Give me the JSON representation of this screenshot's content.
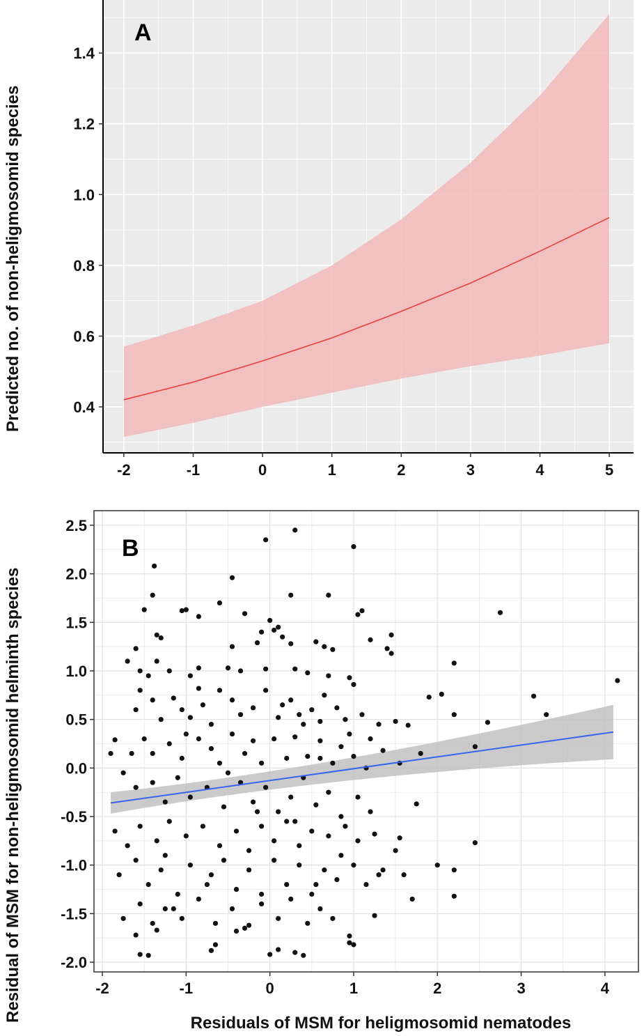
{
  "chart_data": [
    {
      "type": "line",
      "panel_label": "A",
      "ylabel": "Predicted no. of non-heligmosomid species",
      "xlabel": "",
      "xlim": [
        -2.3,
        5.35
      ],
      "ylim": [
        0.27,
        1.55
      ],
      "x_ticks": [
        -2,
        -1,
        0,
        1,
        2,
        3,
        4,
        5
      ],
      "y_ticks": [
        0.4,
        0.6,
        0.8,
        1.0,
        1.2,
        1.4
      ],
      "y_tick_labels": [
        "0.4",
        "0.6",
        "0.8",
        "1.0",
        "1.2",
        "1.4"
      ],
      "grid": true,
      "line_color": "#e8413c",
      "band_color": "#f2b8b8",
      "x": [
        -2,
        -1,
        0,
        1,
        2,
        3,
        4,
        5
      ],
      "fit": [
        0.42,
        0.47,
        0.53,
        0.595,
        0.67,
        0.75,
        0.84,
        0.935
      ],
      "lower": [
        0.315,
        0.355,
        0.4,
        0.44,
        0.48,
        0.515,
        0.545,
        0.58
      ],
      "upper": [
        0.57,
        0.63,
        0.7,
        0.8,
        0.93,
        1.09,
        1.28,
        1.51
      ]
    },
    {
      "type": "scatter",
      "panel_label": "B",
      "xlabel": "Residuals of MSM for heligmosomid nematodes",
      "ylabel": "Residual of MSM for non-heligmosomid helminth species",
      "xlim": [
        -2.1,
        4.4
      ],
      "ylim": [
        -2.1,
        2.65
      ],
      "x_ticks": [
        -2,
        -1,
        0,
        1,
        2,
        3,
        4
      ],
      "y_ticks": [
        -2.0,
        -1.5,
        -1.0,
        -0.5,
        0.0,
        0.5,
        1.0,
        1.5,
        2.0,
        2.5
      ],
      "y_tick_labels": [
        "-2.0",
        "-1.5",
        "-1.0",
        "-0.5",
        "0.0",
        "0.5",
        "1.0",
        "1.5",
        "2.0",
        "2.5"
      ],
      "grid": true,
      "point_color": "#111111",
      "line_color": "#3366ee",
      "band_color": "#bdbdbd",
      "fit_x": [
        -1.9,
        4.1
      ],
      "fit_y": [
        -0.36,
        0.37
      ],
      "band_lower": [
        -0.47,
        0.09
      ],
      "band_upper": [
        -0.25,
        0.65
      ],
      "points": [
        [
          -0.05,
          2.35
        ],
        [
          0.3,
          2.45
        ],
        [
          1.0,
          2.28
        ],
        [
          -1.38,
          2.08
        ],
        [
          -0.45,
          1.96
        ],
        [
          -1.4,
          1.78
        ],
        [
          -1.5,
          1.63
        ],
        [
          -1.0,
          1.63
        ],
        [
          0.7,
          1.78
        ],
        [
          0.25,
          1.78
        ],
        [
          -1.05,
          1.62
        ],
        [
          -0.6,
          1.7
        ],
        [
          -0.85,
          1.56
        ],
        [
          -0.3,
          1.59
        ],
        [
          1.05,
          1.58
        ],
        [
          1.1,
          1.62
        ],
        [
          2.75,
          1.6
        ],
        [
          4.15,
          0.9
        ],
        [
          1.45,
          1.37
        ],
        [
          0.0,
          1.52
        ],
        [
          -1.35,
          1.37
        ],
        [
          -1.3,
          1.34
        ],
        [
          0.1,
          1.45
        ],
        [
          0.05,
          1.42
        ],
        [
          -0.1,
          1.4
        ],
        [
          0.15,
          1.35
        ],
        [
          0.25,
          1.28
        ],
        [
          -0.15,
          1.29
        ],
        [
          -0.45,
          1.25
        ],
        [
          0.55,
          1.3
        ],
        [
          0.65,
          1.25
        ],
        [
          0.75,
          1.22
        ],
        [
          1.2,
          1.32
        ],
        [
          1.4,
          1.23
        ],
        [
          1.45,
          1.18
        ],
        [
          -1.6,
          1.23
        ],
        [
          -1.7,
          1.1
        ],
        [
          -1.55,
          1.0
        ],
        [
          -1.35,
          1.1
        ],
        [
          -1.45,
          0.95
        ],
        [
          -1.2,
          1.0
        ],
        [
          -0.95,
          0.95
        ],
        [
          -0.85,
          1.03
        ],
        [
          -0.85,
          0.82
        ],
        [
          -0.5,
          1.03
        ],
        [
          -0.35,
          1.0
        ],
        [
          -0.05,
          1.02
        ],
        [
          0.3,
          1.02
        ],
        [
          0.45,
          0.98
        ],
        [
          0.7,
          0.95
        ],
        [
          0.95,
          0.93
        ],
        [
          1.0,
          0.86
        ],
        [
          2.2,
          1.08
        ],
        [
          3.15,
          0.74
        ],
        [
          2.05,
          0.76
        ],
        [
          1.9,
          0.73
        ],
        [
          -1.85,
          0.29
        ],
        [
          -1.6,
          0.6
        ],
        [
          -1.55,
          0.8
        ],
        [
          -1.4,
          0.7
        ],
        [
          -1.3,
          0.5
        ],
        [
          -1.15,
          0.72
        ],
        [
          -1.05,
          0.6
        ],
        [
          -0.95,
          0.52
        ],
        [
          -0.8,
          0.65
        ],
        [
          -0.6,
          0.8
        ],
        [
          -0.45,
          0.7
        ],
        [
          -0.35,
          0.55
        ],
        [
          -0.2,
          0.62
        ],
        [
          -0.05,
          0.8
        ],
        [
          0.1,
          0.52
        ],
        [
          0.25,
          0.7
        ],
        [
          0.35,
          0.55
        ],
        [
          0.5,
          0.6
        ],
        [
          0.6,
          0.48
        ],
        [
          0.8,
          0.62
        ],
        [
          0.9,
          0.5
        ],
        [
          1.1,
          0.55
        ],
        [
          1.3,
          0.45
        ],
        [
          1.5,
          0.48
        ],
        [
          1.65,
          0.44
        ],
        [
          2.2,
          0.55
        ],
        [
          2.6,
          0.47
        ],
        [
          3.3,
          0.55
        ],
        [
          -1.65,
          0.15
        ],
        [
          -1.5,
          0.3
        ],
        [
          -1.4,
          0.15
        ],
        [
          -1.2,
          0.25
        ],
        [
          -1.05,
          0.1
        ],
        [
          -0.85,
          0.3
        ],
        [
          -0.7,
          0.2
        ],
        [
          -0.6,
          0.05
        ],
        [
          -0.45,
          0.35
        ],
        [
          -0.3,
          0.15
        ],
        [
          -0.2,
          0.28
        ],
        [
          -0.1,
          0.05
        ],
        [
          0.05,
          0.3
        ],
        [
          0.2,
          0.1
        ],
        [
          0.3,
          0.32
        ],
        [
          0.45,
          0.12
        ],
        [
          0.6,
          0.28
        ],
        [
          0.75,
          0.05
        ],
        [
          0.85,
          0.22
        ],
        [
          1.0,
          0.12
        ],
        [
          1.15,
          0.0
        ],
        [
          1.35,
          0.18
        ],
        [
          1.55,
          0.05
        ],
        [
          1.8,
          0.15
        ],
        [
          2.45,
          0.22
        ],
        [
          -1.9,
          0.15
        ],
        [
          -1.75,
          -0.05
        ],
        [
          -1.6,
          -0.2
        ],
        [
          -1.4,
          -0.15
        ],
        [
          -1.25,
          -0.35
        ],
        [
          -1.1,
          -0.1
        ],
        [
          -0.95,
          -0.3
        ],
        [
          -0.75,
          -0.2
        ],
        [
          -0.55,
          -0.4
        ],
        [
          -0.35,
          -0.15
        ],
        [
          -0.2,
          -0.35
        ],
        [
          -0.05,
          -0.2
        ],
        [
          0.1,
          -0.45
        ],
        [
          0.25,
          -0.3
        ],
        [
          0.4,
          -0.1
        ],
        [
          0.55,
          -0.38
        ],
        [
          0.7,
          -0.25
        ],
        [
          0.85,
          -0.5
        ],
        [
          1.05,
          -0.3
        ],
        [
          1.2,
          -0.45
        ],
        [
          1.75,
          -0.37
        ],
        [
          -1.85,
          -0.65
        ],
        [
          -1.7,
          -0.8
        ],
        [
          -1.55,
          -0.6
        ],
        [
          -1.35,
          -0.75
        ],
        [
          -1.2,
          -0.55
        ],
        [
          -1.0,
          -0.7
        ],
        [
          -0.8,
          -0.6
        ],
        [
          -0.6,
          -0.8
        ],
        [
          -0.4,
          -0.65
        ],
        [
          -0.25,
          -0.85
        ],
        [
          -0.1,
          -0.6
        ],
        [
          0.05,
          -0.75
        ],
        [
          0.2,
          -0.55
        ],
        [
          0.35,
          -0.8
        ],
        [
          0.5,
          -0.65
        ],
        [
          0.7,
          -0.7
        ],
        [
          0.9,
          -0.6
        ],
        [
          1.05,
          -0.75
        ],
        [
          1.25,
          -0.68
        ],
        [
          1.55,
          -0.72
        ],
        [
          2.45,
          -0.77
        ],
        [
          -1.8,
          -1.1
        ],
        [
          -1.6,
          -0.95
        ],
        [
          -1.45,
          -1.2
        ],
        [
          -1.3,
          -1.05
        ],
        [
          -1.1,
          -1.3
        ],
        [
          -0.95,
          -1.0
        ],
        [
          -0.75,
          -1.2
        ],
        [
          -0.55,
          -0.95
        ],
        [
          -0.4,
          -1.25
        ],
        [
          -0.25,
          -1.05
        ],
        [
          -0.1,
          -1.3
        ],
        [
          0.05,
          -0.95
        ],
        [
          0.2,
          -1.2
        ],
        [
          0.35,
          -1.0
        ],
        [
          0.5,
          -1.3
        ],
        [
          0.65,
          -1.05
        ],
        [
          0.8,
          -1.15
        ],
        [
          1.0,
          -1.0
        ],
        [
          1.15,
          -1.2
        ],
        [
          1.35,
          -1.05
        ],
        [
          1.6,
          -1.1
        ],
        [
          2.0,
          -1.0
        ],
        [
          2.2,
          -1.05
        ],
        [
          2.2,
          -1.32
        ],
        [
          -1.75,
          -1.55
        ],
        [
          -1.55,
          -1.4
        ],
        [
          -1.4,
          -1.6
        ],
        [
          -1.25,
          -1.45
        ],
        [
          -1.05,
          -1.55
        ],
        [
          -0.85,
          -1.35
        ],
        [
          -0.65,
          -1.6
        ],
        [
          -0.45,
          -1.45
        ],
        [
          -0.3,
          -1.65
        ],
        [
          -0.1,
          -1.4
        ],
        [
          0.1,
          -1.55
        ],
        [
          0.25,
          -1.35
        ],
        [
          0.45,
          -1.6
        ],
        [
          0.6,
          -1.45
        ],
        [
          0.75,
          -1.55
        ],
        [
          -1.55,
          -1.92
        ],
        [
          -1.45,
          -1.93
        ],
        [
          -0.7,
          -1.88
        ],
        [
          -0.65,
          -1.82
        ],
        [
          0.0,
          -1.92
        ],
        [
          0.1,
          -1.87
        ],
        [
          0.3,
          -1.9
        ],
        [
          0.4,
          -1.93
        ],
        [
          0.95,
          -1.8
        ],
        [
          1.0,
          -1.82
        ],
        [
          0.95,
          -1.73
        ],
        [
          1.7,
          -1.35
        ],
        [
          -1.6,
          -1.72
        ],
        [
          -1.35,
          -1.67
        ],
        [
          -0.4,
          -1.68
        ],
        [
          -0.25,
          -1.62
        ],
        [
          0.55,
          -1.2
        ],
        [
          1.25,
          -1.52
        ],
        [
          1.3,
          -1.1
        ],
        [
          -1.15,
          -1.45
        ],
        [
          -0.15,
          -0.45
        ],
        [
          0.15,
          0.65
        ],
        [
          0.65,
          0.75
        ],
        [
          -0.7,
          0.45
        ],
        [
          -1.0,
          0.35
        ],
        [
          0.4,
          0.45
        ],
        [
          0.95,
          0.35
        ],
        [
          1.2,
          0.3
        ],
        [
          -0.5,
          -0.05
        ],
        [
          0.6,
          0.1
        ],
        [
          0.3,
          -0.55
        ],
        [
          -0.7,
          -1.1
        ],
        [
          0.85,
          -0.9
        ],
        [
          -1.25,
          -0.9
        ],
        [
          1.5,
          -0.85
        ]
      ]
    }
  ]
}
